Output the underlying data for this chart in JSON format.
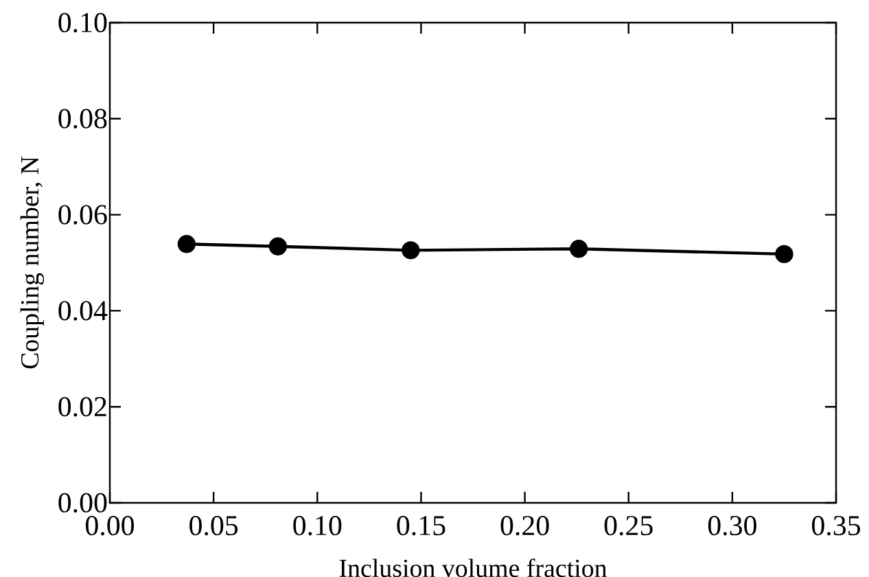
{
  "chart_data": {
    "type": "line",
    "xlabel": "Inclusion volume fraction",
    "ylabel": "Coupling number,  N",
    "x": [
      0.037,
      0.081,
      0.145,
      0.226,
      0.325
    ],
    "series": [
      {
        "color": "#000000",
        "values": [
          0.0539,
          0.0534,
          0.0526,
          0.0529,
          0.0518
        ]
      }
    ],
    "marker": "circle",
    "line_style": "solid",
    "grid": false,
    "xlim": [
      0,
      0.35
    ],
    "xticks": [
      "0.00",
      0.05,
      "0.10",
      0.15,
      "0.20",
      0.25,
      "0.30",
      0.35
    ],
    "ylim": [
      0,
      0.1
    ],
    "yticks": [
      "0.00",
      0.02,
      0.04,
      0.06,
      0.08,
      "0.10"
    ]
  }
}
